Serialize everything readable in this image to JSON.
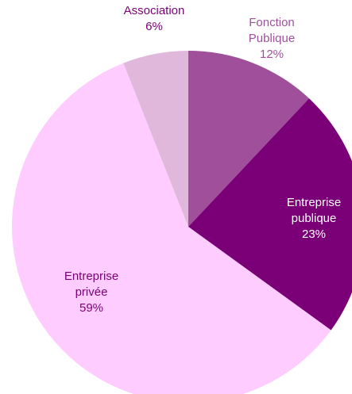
{
  "chart_data": {
    "type": "pie",
    "title": "",
    "start_angle_deg": 0,
    "direction": "clockwise",
    "slices": [
      {
        "label_lines": [
          "Fonction",
          "Publique"
        ],
        "value": 12,
        "value_label": "12%",
        "color": "#a0509a",
        "label_color": "#a0509a"
      },
      {
        "label_lines": [
          "Entreprise",
          "publique"
        ],
        "value": 23,
        "value_label": "23%",
        "color": "#7b0078",
        "label_color": "#ffffff"
      },
      {
        "label_lines": [
          "Entreprise",
          "privée"
        ],
        "value": 59,
        "value_label": "59%",
        "color": "#ffccff",
        "label_color": "#7b0078"
      },
      {
        "label_lines": [
          "Association"
        ],
        "value": 6,
        "value_label": "6%",
        "color": "#dfb8dc",
        "label_color": "#7b0078"
      }
    ]
  }
}
